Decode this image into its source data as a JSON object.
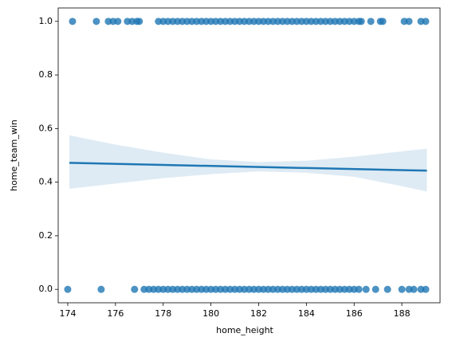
{
  "chart_data": {
    "type": "regplot",
    "xlabel": "home_height",
    "ylabel": "home_team_win",
    "xlim": [
      173.6,
      189.6
    ],
    "ylim": [
      -0.05,
      1.05
    ],
    "xticks": [
      174,
      176,
      178,
      180,
      182,
      184,
      186,
      188
    ],
    "yticks": [
      {
        "value": 0,
        "label": "0.0"
      },
      0.2,
      0.4,
      0.6,
      0.8,
      {
        "value": 1,
        "label": "1.0"
      }
    ],
    "color": "#1f77b4",
    "series": [
      {
        "x": [
          174.2,
          175.2,
          175.7,
          175.9,
          176.1,
          176.5,
          176.7,
          176.9,
          177.0,
          177.8,
          178.0,
          178.2,
          178.4,
          178.6,
          178.8,
          179.0,
          179.2,
          179.4,
          179.6,
          179.8,
          180.0,
          180.2,
          180.4,
          180.6,
          180.8,
          181.0,
          181.2,
          181.4,
          181.6,
          181.8,
          182.0,
          182.2,
          182.4,
          182.6,
          182.8,
          183.0,
          183.2,
          183.4,
          183.6,
          183.8,
          184.0,
          184.2,
          184.4,
          184.6,
          184.8,
          185.0,
          185.2,
          185.4,
          185.6,
          185.8,
          186.0,
          186.2,
          186.3,
          186.7,
          187.1,
          187.2,
          188.1,
          188.3,
          188.8,
          189.0
        ],
        "values": [
          1,
          1,
          1,
          1,
          1,
          1,
          1,
          1,
          1,
          1,
          1,
          1,
          1,
          1,
          1,
          1,
          1,
          1,
          1,
          1,
          1,
          1,
          1,
          1,
          1,
          1,
          1,
          1,
          1,
          1,
          1,
          1,
          1,
          1,
          1,
          1,
          1,
          1,
          1,
          1,
          1,
          1,
          1,
          1,
          1,
          1,
          1,
          1,
          1,
          1,
          1,
          1,
          1,
          1,
          1,
          1,
          1,
          1,
          1,
          1
        ]
      },
      {
        "x": [
          174.0,
          175.4,
          176.8,
          177.2,
          177.4,
          177.6,
          177.8,
          178.0,
          178.2,
          178.4,
          178.6,
          178.8,
          179.0,
          179.2,
          179.4,
          179.6,
          179.8,
          180.0,
          180.2,
          180.4,
          180.6,
          180.8,
          181.0,
          181.2,
          181.4,
          181.6,
          181.8,
          182.0,
          182.2,
          182.4,
          182.6,
          182.8,
          183.0,
          183.2,
          183.4,
          183.6,
          183.8,
          184.0,
          184.2,
          184.4,
          184.6,
          184.8,
          185.0,
          185.2,
          185.4,
          185.6,
          185.8,
          186.0,
          186.2,
          186.5,
          186.9,
          187.4,
          188.0,
          188.3,
          188.5,
          188.8,
          189.0
        ],
        "values": [
          0,
          0,
          0,
          0,
          0,
          0,
          0,
          0,
          0,
          0,
          0,
          0,
          0,
          0,
          0,
          0,
          0,
          0,
          0,
          0,
          0,
          0,
          0,
          0,
          0,
          0,
          0,
          0,
          0,
          0,
          0,
          0,
          0,
          0,
          0,
          0,
          0,
          0,
          0,
          0,
          0,
          0,
          0,
          0,
          0,
          0,
          0,
          0,
          0,
          0,
          0,
          0,
          0,
          0,
          0,
          0,
          0
        ]
      }
    ],
    "regression": {
      "x": [
        174.07,
        189.05
      ],
      "values": [
        0.472,
        0.443
      ]
    },
    "band": {
      "x": [
        174.07,
        176,
        178,
        180,
        182,
        184,
        186,
        188,
        189.05
      ],
      "upper": [
        0.575,
        0.54,
        0.51,
        0.485,
        0.475,
        0.48,
        0.495,
        0.515,
        0.525
      ],
      "lower": [
        0.375,
        0.395,
        0.415,
        0.43,
        0.44,
        0.435,
        0.42,
        0.385,
        0.365
      ]
    }
  }
}
